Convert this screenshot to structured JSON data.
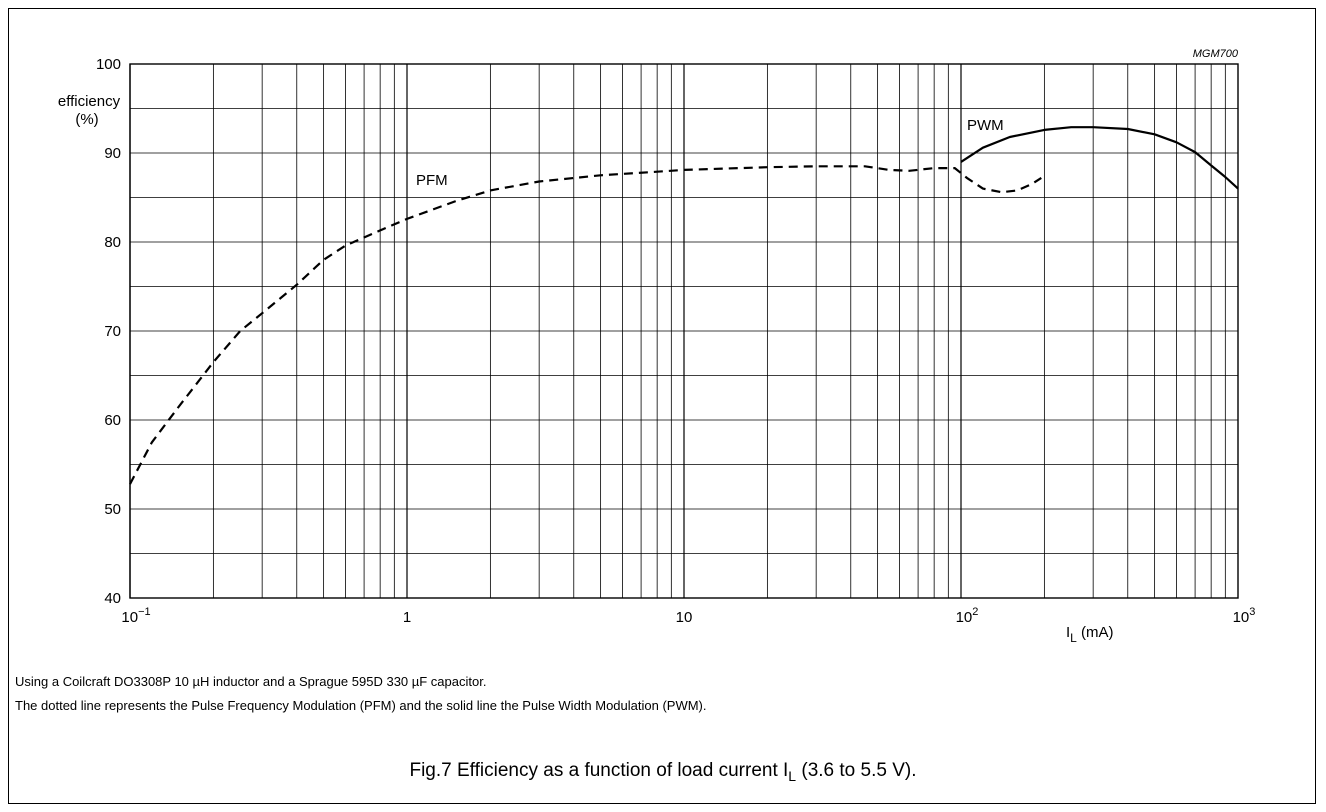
{
  "chart_data": {
    "type": "line",
    "figure_code": "MGM700",
    "ylabel": {
      "line1": "efficiency",
      "line2": "(%)"
    },
    "xlabel": {
      "main": "I",
      "sub": "L",
      "unit": " (mA)"
    },
    "x_scale": "log",
    "xlim": [
      0.1,
      1000
    ],
    "ylim": [
      40,
      100
    ],
    "x_ticks": [
      {
        "label": "10",
        "exp": "−1"
      },
      {
        "label": "1",
        "exp": ""
      },
      {
        "label": "10",
        "exp": ""
      },
      {
        "label": "10",
        "exp": "2"
      },
      {
        "label": "10",
        "exp": "3"
      }
    ],
    "y_ticks": [
      "40",
      "50",
      "60",
      "70",
      "80",
      "90",
      "100"
    ],
    "grid": true,
    "series": [
      {
        "name": "PFM",
        "style": "dashed",
        "x": [
          0.1,
          0.12,
          0.15,
          0.2,
          0.25,
          0.3,
          0.4,
          0.5,
          0.6,
          0.8,
          1,
          1.5,
          2,
          3,
          5,
          8,
          10,
          20,
          30,
          45,
          55,
          65,
          80,
          95,
          105,
          120,
          140,
          160,
          180,
          195
        ],
        "y": [
          52.8,
          57.5,
          61.5,
          66.5,
          70,
          72,
          75.2,
          78,
          79.6,
          81.3,
          82.6,
          84.6,
          85.8,
          86.8,
          87.5,
          87.9,
          88.1,
          88.4,
          88.5,
          88.5,
          88.1,
          88.0,
          88.3,
          88.3,
          87.2,
          86.0,
          85.6,
          85.8,
          86.5,
          87.2
        ]
      },
      {
        "name": "PWM",
        "style": "solid",
        "x": [
          100,
          120,
          150,
          200,
          250,
          300,
          400,
          500,
          600,
          700,
          800,
          900,
          1000
        ],
        "y": [
          89.0,
          90.6,
          91.8,
          92.6,
          92.9,
          92.9,
          92.7,
          92.1,
          91.2,
          90.1,
          88.6,
          87.3,
          86.0
        ]
      }
    ]
  },
  "notes": {
    "line1": "Using a Coilcraft DO3308P 10 µH inductor and a Sprague 595D 330 µF capacitor.",
    "line2": "The dotted line represents the Pulse Frequency Modulation (PFM) and the solid line the Pulse Width Modulation (PWM)."
  },
  "caption": {
    "fig": "Fig.7",
    "text": "  Efficiency as a function of load current I",
    "sub": "L",
    "tail": " (3.6 to 5.5 V)."
  }
}
